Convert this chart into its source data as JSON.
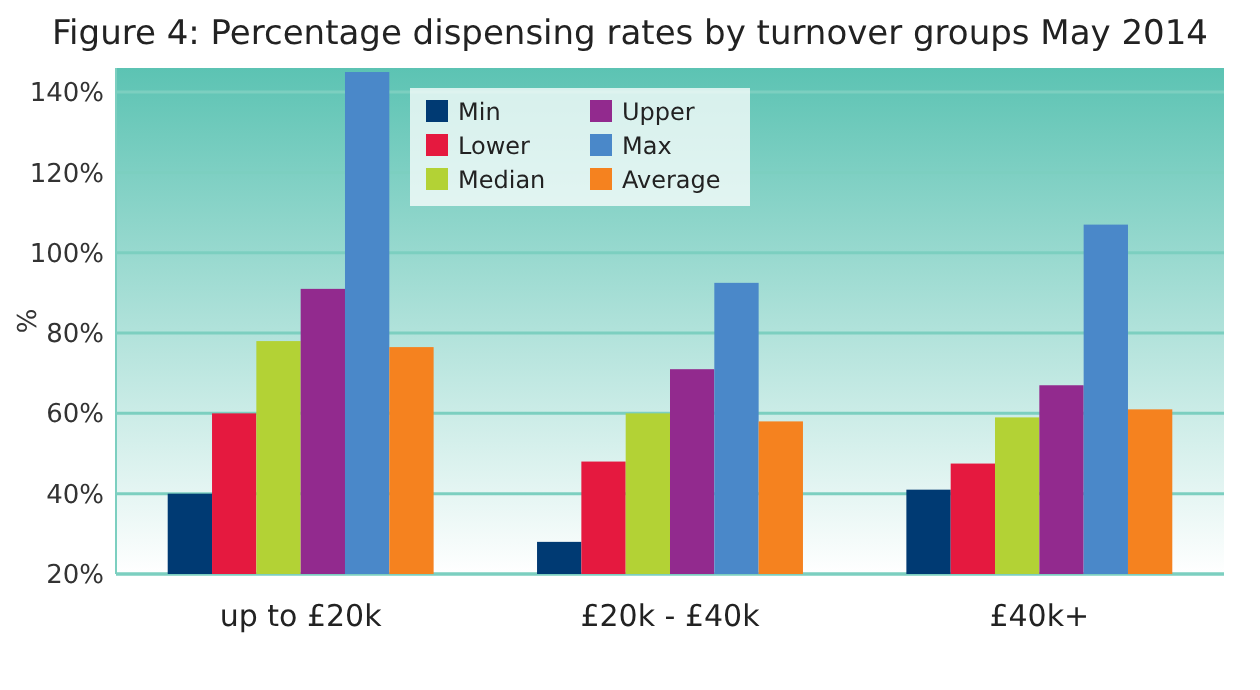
{
  "chart_data": {
    "type": "bar",
    "title": "Figure 4: Percentage dispensing rates by turnover groups May 2014",
    "ylabel": "%",
    "categories": [
      "up to £20k",
      "£20k - £40k",
      "£40k+"
    ],
    "series": [
      {
        "name": "Min",
        "color": "#003a73",
        "values": [
          40,
          28,
          41
        ]
      },
      {
        "name": "Lower",
        "color": "#e5193f",
        "values": [
          60,
          48,
          47.5
        ]
      },
      {
        "name": "Median",
        "color": "#b3d235",
        "values": [
          78,
          60,
          59
        ]
      },
      {
        "name": "Upper",
        "color": "#922a8e",
        "values": [
          91,
          71,
          67
        ]
      },
      {
        "name": "Max",
        "color": "#4a88c9",
        "values": [
          145,
          92.5,
          107
        ]
      },
      {
        "name": "Average",
        "color": "#f5821f",
        "values": [
          76.5,
          58,
          61
        ]
      }
    ],
    "ylim": [
      20,
      146
    ],
    "yticks": [
      {
        "value": 20,
        "label": "20%"
      },
      {
        "value": 40,
        "label": "40%"
      },
      {
        "value": 60,
        "label": "60%"
      },
      {
        "value": 80,
        "label": "80%"
      },
      {
        "value": 100,
        "label": "100%"
      },
      {
        "value": 120,
        "label": "120%"
      },
      {
        "value": 140,
        "label": "140%"
      }
    ],
    "grid": "y",
    "legend": "top"
  }
}
